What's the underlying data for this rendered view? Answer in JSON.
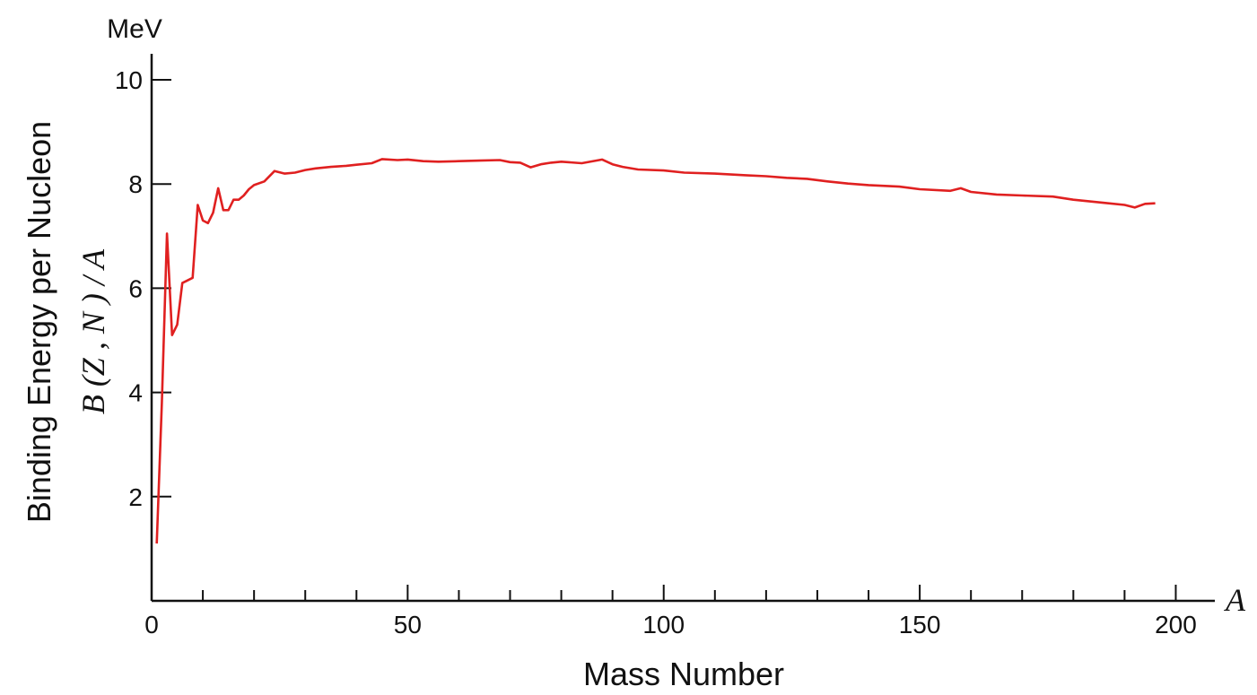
{
  "chart_data": {
    "type": "line",
    "title": "",
    "xlabel": "Mass Number",
    "x_symbol": "A",
    "ylabel": "Binding Energy per Nucleon",
    "ylabel_formula": "B (Z , N ) / A",
    "y_unit": "MeV",
    "xlim": [
      0,
      205
    ],
    "ylim": [
      0,
      10.5
    ],
    "x_ticks": [
      0,
      50,
      100,
      150,
      200
    ],
    "x_tick_labels": [
      "0",
      "50",
      "100",
      "150",
      "200"
    ],
    "x_minor_tick_step": 10,
    "y_ticks": [
      2,
      4,
      6,
      8,
      10
    ],
    "y_tick_labels": [
      "2",
      "4",
      "6",
      "8",
      "10"
    ],
    "grid": false,
    "line_color": "#e02020",
    "series": [
      {
        "x": [
          1,
          2,
          3,
          4,
          5,
          6,
          7,
          8,
          9,
          10,
          11,
          12,
          13,
          14,
          15,
          16,
          17,
          18,
          19,
          20,
          22,
          24,
          26,
          28,
          30,
          32,
          35,
          38,
          40,
          43,
          45,
          48,
          50,
          53,
          56,
          60,
          64,
          68,
          70,
          72,
          74,
          76,
          78,
          80,
          84,
          88,
          90,
          92,
          95,
          100,
          104,
          110,
          116,
          120,
          124,
          128,
          132,
          136,
          140,
          146,
          150,
          156,
          158,
          160,
          165,
          170,
          176,
          180,
          186,
          190,
          192,
          194,
          196
        ],
        "y": [
          1.1,
          3.8,
          7.05,
          5.1,
          5.3,
          6.1,
          6.15,
          6.2,
          7.6,
          7.3,
          7.25,
          7.45,
          7.92,
          7.5,
          7.5,
          7.7,
          7.7,
          7.78,
          7.9,
          7.98,
          8.05,
          8.25,
          8.2,
          8.22,
          8.27,
          8.3,
          8.33,
          8.35,
          8.37,
          8.4,
          8.48,
          8.46,
          8.47,
          8.44,
          8.43,
          8.44,
          8.45,
          8.46,
          8.42,
          8.41,
          8.32,
          8.38,
          8.41,
          8.43,
          8.4,
          8.47,
          8.38,
          8.33,
          8.28,
          8.26,
          8.22,
          8.2,
          8.17,
          8.15,
          8.12,
          8.1,
          8.05,
          8.01,
          7.98,
          7.95,
          7.9,
          7.87,
          7.92,
          7.85,
          7.8,
          7.78,
          7.76,
          7.7,
          7.64,
          7.6,
          7.55,
          7.62,
          7.63
        ]
      }
    ]
  }
}
